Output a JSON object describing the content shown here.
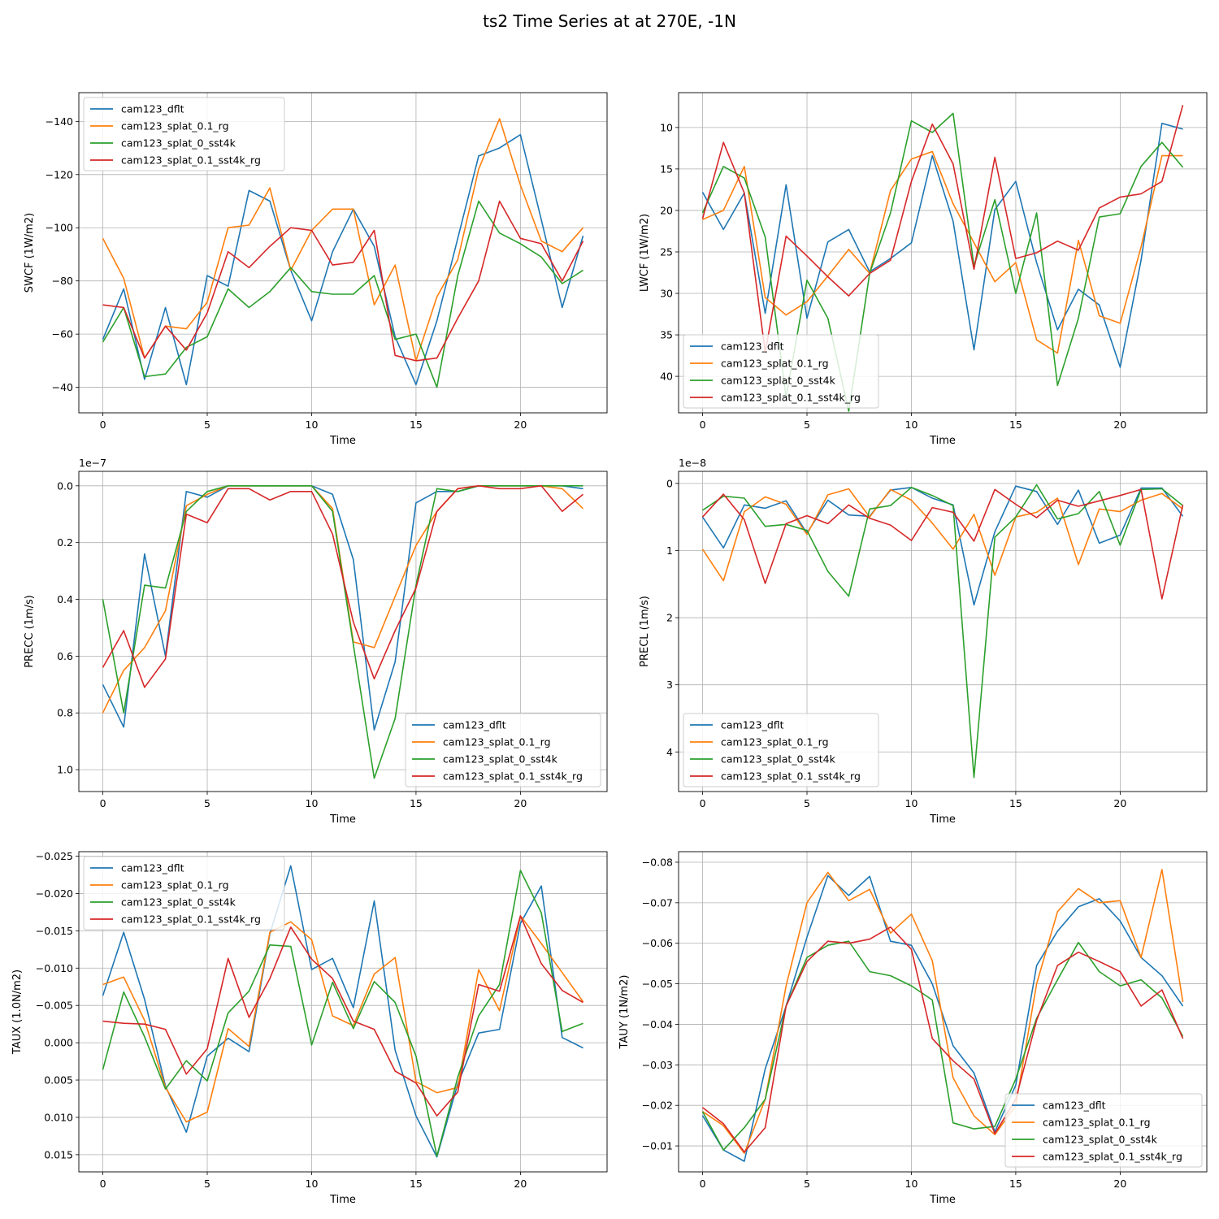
{
  "figure": {
    "title": "ts2 Time Series at at 270E, -1N",
    "colors": [
      "#1f77b4",
      "#ff7f0e",
      "#2ca02c",
      "#d62728"
    ]
  },
  "chart_data": [
    {
      "id": "swcf",
      "type": "line",
      "title": "",
      "xlabel": "Time",
      "ylabel": "SWCF (1W/m2)",
      "xlim": [
        -1.15,
        24.15
      ],
      "xticks": [
        0,
        5,
        10,
        15,
        20
      ],
      "ylim": [
        -30.4,
        -150.8
      ],
      "yticks": [
        -40,
        -60,
        -80,
        -100,
        -120,
        -140
      ],
      "ytick_labels": [
        "−40",
        "−60",
        "−80",
        "−100",
        "−120",
        "−140"
      ],
      "offset_label": "",
      "legend_loc": "upper left",
      "grid": true,
      "x": [
        0,
        1,
        2,
        3,
        4,
        5,
        6,
        7,
        8,
        9,
        10,
        11,
        12,
        13,
        14,
        15,
        16,
        17,
        18,
        19,
        20,
        21,
        22,
        23
      ],
      "series": [
        {
          "name": "cam123_dflt",
          "values": [
            -58,
            -77,
            -43,
            -70,
            -41,
            -82,
            -78,
            -114,
            -110,
            -84,
            -65,
            -91,
            -107,
            -93,
            -59,
            -41,
            -65,
            -96,
            -127,
            -130,
            -135,
            -103,
            -70,
            -97
          ]
        },
        {
          "name": "cam123_splat_0.1_rg",
          "values": [
            -96,
            -81,
            -51,
            -63,
            -62,
            -72,
            -100,
            -101,
            -115,
            -84,
            -99,
            -107,
            -107,
            -71,
            -86,
            -50,
            -74,
            -88,
            -122,
            -141,
            -116,
            -95,
            -91,
            -100
          ]
        },
        {
          "name": "cam123_splat_0_sst4k",
          "values": [
            -57,
            -70,
            -44,
            -45,
            -55,
            -59,
            -77,
            -70,
            -76,
            -85,
            -76,
            -75,
            -75,
            -82,
            -58,
            -60,
            -40,
            -82,
            -110,
            -98,
            -94,
            -89,
            -79,
            -84
          ]
        },
        {
          "name": "cam123_splat_0.1_sst4k_rg",
          "values": [
            -71,
            -70,
            -51,
            -63,
            -54,
            -68,
            -91,
            -85,
            -93,
            -100,
            -99,
            -86,
            -87,
            -99,
            -52,
            -50,
            -51,
            -66,
            -80,
            -110,
            -96,
            -94,
            -80,
            -95
          ]
        }
      ]
    },
    {
      "id": "lwcf",
      "type": "line",
      "title": "",
      "xlabel": "Time",
      "ylabel": "LWCF (1W/m2)",
      "xlim": [
        -1.15,
        24.15
      ],
      "xticks": [
        0,
        5,
        10,
        15,
        20
      ],
      "ylim": [
        44.4,
        5.8
      ],
      "yticks": [
        10,
        15,
        20,
        25,
        30,
        35,
        40
      ],
      "ytick_labels": [
        "10",
        "15",
        "20",
        "25",
        "30",
        "35",
        "40"
      ],
      "offset_label": "",
      "legend_loc": "lower left",
      "grid": true,
      "x": [
        0,
        1,
        2,
        3,
        4,
        5,
        6,
        7,
        8,
        9,
        10,
        11,
        12,
        13,
        14,
        15,
        16,
        17,
        18,
        19,
        20,
        21,
        22,
        23
      ],
      "series": [
        {
          "name": "cam123_dflt",
          "values": [
            17.8,
            22.3,
            17.9,
            32.4,
            16.9,
            33,
            23.8,
            22.3,
            27.4,
            25.8,
            23.9,
            13.4,
            21.3,
            36.8,
            19.9,
            16.5,
            26.3,
            34.4,
            29.5,
            31.4,
            38.9,
            26,
            9.5,
            10.2
          ]
        },
        {
          "name": "cam123_splat_0.1_rg",
          "values": [
            21.1,
            20,
            14.7,
            30.5,
            32.6,
            31,
            27.9,
            24.7,
            27.6,
            17.6,
            13.8,
            12.9,
            19.2,
            23.9,
            28.6,
            26.3,
            35.6,
            37.2,
            23.6,
            32.7,
            33.6,
            24.4,
            13.4,
            13.4
          ]
        },
        {
          "name": "cam123_splat_0_sst4k",
          "values": [
            20.3,
            14.7,
            16.1,
            23.2,
            42.5,
            28.4,
            33,
            44.2,
            27.6,
            20.3,
            9.2,
            10.6,
            8.3,
            26.7,
            18.7,
            30,
            20.3,
            41.1,
            33,
            20.8,
            20.4,
            14.7,
            11.8,
            14.8
          ]
        },
        {
          "name": "cam123_splat_0.1_sst4k_rg",
          "values": [
            21,
            11.8,
            17.9,
            37.1,
            23.1,
            25.5,
            28,
            30.3,
            27.6,
            26,
            16.5,
            9.6,
            14.4,
            27.1,
            13.6,
            25.8,
            25.1,
            23.7,
            24.8,
            19.7,
            18.4,
            18,
            16.5,
            7.3
          ]
        }
      ]
    },
    {
      "id": "precc",
      "type": "line",
      "title": "",
      "xlabel": "Time",
      "ylabel": "PRECC (1m/s)",
      "xlim": [
        -1.15,
        24.15
      ],
      "xticks": [
        0,
        5,
        10,
        15,
        20
      ],
      "ylim": [
        1.077,
        -0.051
      ],
      "yticks": [
        0.0,
        0.2,
        0.4,
        0.6,
        0.8,
        1.0
      ],
      "ytick_labels": [
        "0.0",
        "0.2",
        "0.4",
        "0.6",
        "0.8",
        "1.0"
      ],
      "offset_label": "1e−7",
      "legend_loc": "lower right",
      "grid": true,
      "x": [
        0,
        1,
        2,
        3,
        4,
        5,
        6,
        7,
        8,
        9,
        10,
        11,
        12,
        13,
        14,
        15,
        16,
        17,
        18,
        19,
        20,
        21,
        22,
        23
      ],
      "series": [
        {
          "name": "cam123_dflt",
          "values": [
            0.7,
            0.85,
            0.24,
            0.6,
            0.02,
            0.04,
            0,
            0,
            0,
            0,
            0,
            0.03,
            0.26,
            0.86,
            0.62,
            0.06,
            0.02,
            0.02,
            0,
            0,
            0,
            0,
            0,
            0.01
          ]
        },
        {
          "name": "cam123_splat_0.1_rg",
          "values": [
            0.8,
            0.65,
            0.57,
            0.44,
            0.07,
            0.03,
            0,
            0,
            0,
            0,
            0,
            0.08,
            0.55,
            0.57,
            0.39,
            0.21,
            0.09,
            0.01,
            0,
            0,
            0,
            0,
            0.01,
            0.08
          ]
        },
        {
          "name": "cam123_splat_0_sst4k",
          "values": [
            0.4,
            0.8,
            0.35,
            0.36,
            0.09,
            0.02,
            0,
            0,
            0,
            0,
            0,
            0.09,
            0.56,
            1.03,
            0.82,
            0.35,
            0.01,
            0.02,
            0,
            0,
            0,
            0,
            0,
            0
          ]
        },
        {
          "name": "cam123_splat_0.1_sst4k_rg",
          "values": [
            0.64,
            0.51,
            0.71,
            0.61,
            0.1,
            0.13,
            0.01,
            0.01,
            0.05,
            0.02,
            0.02,
            0.17,
            0.48,
            0.68,
            0.51,
            0.36,
            0.09,
            0.01,
            0,
            0.01,
            0.01,
            0,
            0.09,
            0.03
          ]
        }
      ]
    },
    {
      "id": "precl",
      "type": "line",
      "title": "",
      "xlabel": "Time",
      "ylabel": "PRECL (1m/s)",
      "xlim": [
        -1.15,
        24.15
      ],
      "xticks": [
        0,
        5,
        10,
        15,
        20
      ],
      "ylim": [
        4.59,
        -0.18
      ],
      "yticks": [
        0,
        1,
        2,
        3,
        4
      ],
      "ytick_labels": [
        "0",
        "1",
        "2",
        "3",
        "4"
      ],
      "offset_label": "1e−8",
      "legend_loc": "lower left",
      "grid": true,
      "x": [
        0,
        1,
        2,
        3,
        4,
        5,
        6,
        7,
        8,
        9,
        10,
        11,
        12,
        13,
        14,
        15,
        16,
        17,
        18,
        19,
        20,
        21,
        22,
        23
      ],
      "series": [
        {
          "name": "cam123_dflt",
          "values": [
            0.5,
            0.96,
            0.32,
            0.37,
            0.26,
            0.74,
            0.25,
            0.47,
            0.49,
            0.1,
            0.06,
            0.22,
            0.32,
            1.81,
            0.72,
            0.04,
            0.12,
            0.61,
            0.1,
            0.89,
            0.77,
            0.07,
            0.07,
            0.49
          ]
        },
        {
          "name": "cam123_splat_0.1_rg",
          "values": [
            0.98,
            1.45,
            0.42,
            0.2,
            0.31,
            0.76,
            0.17,
            0.08,
            0.5,
            0.09,
            0.25,
            0.59,
            0.98,
            0.46,
            1.37,
            0.5,
            0.43,
            0.22,
            1.21,
            0.38,
            0.42,
            0.25,
            0.15,
            0.38
          ]
        },
        {
          "name": "cam123_splat_0_sst4k",
          "values": [
            0.4,
            0.19,
            0.22,
            0.64,
            0.61,
            0.7,
            1.31,
            1.68,
            0.38,
            0.33,
            0.06,
            0.18,
            0.33,
            4.38,
            0.8,
            0.5,
            0.02,
            0.53,
            0.45,
            0.12,
            0.92,
            0.09,
            0.08,
            0.33
          ]
        },
        {
          "name": "cam123_splat_0.1_sst4k_rg",
          "values": [
            0.5,
            0.16,
            0.54,
            1.49,
            0.6,
            0.48,
            0.6,
            0.32,
            0.52,
            0.62,
            0.85,
            0.36,
            0.43,
            0.86,
            0.09,
            0.31,
            0.51,
            0.25,
            0.34,
            0.26,
            0.18,
            0.09,
            1.72,
            0.32
          ]
        }
      ]
    },
    {
      "id": "taux",
      "type": "line",
      "title": "",
      "xlabel": "Time",
      "ylabel": "TAUX (1.0N/m2)",
      "xlim": [
        -1.15,
        24.15
      ],
      "xticks": [
        0,
        5,
        10,
        15,
        20
      ],
      "ylim": [
        0.0173,
        -0.0256
      ],
      "yticks": [
        0.015,
        0.01,
        0.005,
        0.0,
        -0.005,
        -0.01,
        -0.015,
        -0.02,
        -0.025
      ],
      "ytick_labels": [
        "0.015",
        "0.010",
        "0.005",
        "0.000",
        "−0.005",
        "−0.010",
        "−0.015",
        "−0.020",
        "−0.025"
      ],
      "offset_label": "",
      "legend_loc": "upper left",
      "grid": true,
      "x": [
        0,
        1,
        2,
        3,
        4,
        5,
        6,
        7,
        8,
        9,
        10,
        11,
        12,
        13,
        14,
        15,
        16,
        17,
        18,
        19,
        20,
        21,
        22,
        23
      ],
      "series": [
        {
          "name": "cam123_dflt",
          "values": [
            -0.0063,
            -0.0148,
            -0.0058,
            0.0058,
            0.012,
            0.0018,
            -0.0006,
            0.0012,
            -0.0146,
            -0.0237,
            -0.0098,
            -0.0113,
            -0.0047,
            -0.019,
            0.001,
            0.0098,
            0.0153,
            0.0055,
            -0.0013,
            -0.0018,
            -0.016,
            -0.021,
            -0.0007,
            0.0007
          ]
        },
        {
          "name": "cam123_splat_0.1_rg",
          "values": [
            -0.0078,
            -0.0088,
            -0.003,
            0.006,
            0.0106,
            0.0093,
            -0.0019,
            0.0005,
            -0.0148,
            -0.0162,
            -0.0138,
            -0.0036,
            -0.0023,
            -0.0092,
            -0.0114,
            0.0052,
            0.0067,
            0.006,
            -0.0098,
            -0.0043,
            -0.017,
            -0.0133,
            -0.0094,
            -0.0055
          ]
        },
        {
          "name": "cam123_splat_0_sst4k",
          "values": [
            0.0036,
            -0.0068,
            -0.0008,
            0.0062,
            0.0024,
            0.0051,
            -0.004,
            -0.0069,
            -0.0131,
            -0.0129,
            0.0003,
            -0.0081,
            -0.0019,
            -0.0082,
            -0.0054,
            0.0018,
            0.0152,
            0.0046,
            -0.0036,
            -0.0078,
            -0.0231,
            -0.0174,
            -0.0015,
            -0.0026
          ]
        },
        {
          "name": "cam123_splat_0.1_sst4k_rg",
          "values": [
            -0.0029,
            -0.0026,
            -0.0025,
            -0.0018,
            0.0042,
            0.0008,
            -0.0113,
            -0.0034,
            -0.0086,
            -0.0155,
            -0.0112,
            -0.0086,
            -0.0029,
            -0.0018,
            0.0038,
            0.0054,
            0.0098,
            0.0066,
            -0.0078,
            -0.0069,
            -0.017,
            -0.0106,
            -0.007,
            -0.0054
          ]
        }
      ]
    },
    {
      "id": "tauy",
      "type": "line",
      "title": "",
      "xlabel": "Time",
      "ylabel": "TAUY (1N/m2)",
      "xlim": [
        -1.15,
        24.15
      ],
      "xticks": [
        0,
        5,
        10,
        15,
        20
      ],
      "ylim": [
        -0.0036,
        -0.0826
      ],
      "yticks": [
        -0.01,
        -0.02,
        -0.03,
        -0.04,
        -0.05,
        -0.06,
        -0.07,
        -0.08
      ],
      "ytick_labels": [
        "−0.01",
        "−0.02",
        "−0.03",
        "−0.04",
        "−0.05",
        "−0.06",
        "−0.07",
        "−0.08"
      ],
      "offset_label": "",
      "legend_loc": "lower right",
      "grid": true,
      "x": [
        0,
        1,
        2,
        3,
        4,
        5,
        6,
        7,
        8,
        9,
        10,
        11,
        12,
        13,
        14,
        15,
        16,
        17,
        18,
        19,
        20,
        21,
        22,
        23
      ],
      "series": [
        {
          "name": "cam123_dflt",
          "values": [
            -0.0175,
            -0.009,
            -0.0062,
            -0.029,
            -0.0445,
            -0.0615,
            -0.0767,
            -0.0718,
            -0.0765,
            -0.0605,
            -0.0595,
            -0.05,
            -0.0347,
            -0.028,
            -0.0135,
            -0.025,
            -0.0545,
            -0.063,
            -0.069,
            -0.071,
            -0.0655,
            -0.0565,
            -0.052,
            -0.0445
          ]
        },
        {
          "name": "cam123_splat_0.1_rg",
          "values": [
            -0.0185,
            -0.015,
            -0.0082,
            -0.0215,
            -0.0495,
            -0.07,
            -0.0775,
            -0.0705,
            -0.0733,
            -0.0625,
            -0.0672,
            -0.0557,
            -0.0268,
            -0.0174,
            -0.0128,
            -0.02,
            -0.05,
            -0.0678,
            -0.0735,
            -0.07,
            -0.0705,
            -0.0565,
            -0.0782,
            -0.0455
          ]
        },
        {
          "name": "cam123_splat_0_sst4k",
          "values": [
            -0.0185,
            -0.009,
            -0.0145,
            -0.0215,
            -0.0445,
            -0.0565,
            -0.0595,
            -0.0605,
            -0.053,
            -0.052,
            -0.0495,
            -0.046,
            -0.0157,
            -0.0142,
            -0.0148,
            -0.0265,
            -0.0415,
            -0.051,
            -0.0602,
            -0.053,
            -0.0495,
            -0.051,
            -0.0465,
            -0.037
          ]
        },
        {
          "name": "cam123_splat_0.1_sst4k_rg",
          "values": [
            -0.0195,
            -0.0155,
            -0.0085,
            -0.0145,
            -0.0445,
            -0.0555,
            -0.0605,
            -0.06,
            -0.061,
            -0.064,
            -0.0585,
            -0.0365,
            -0.031,
            -0.0265,
            -0.013,
            -0.0215,
            -0.041,
            -0.0545,
            -0.0578,
            -0.0555,
            -0.053,
            -0.0445,
            -0.0485,
            -0.0365
          ]
        }
      ]
    }
  ]
}
